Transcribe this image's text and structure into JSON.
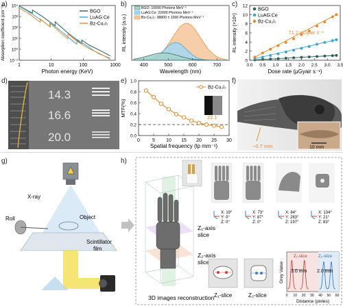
{
  "panel_labels": {
    "a": "a)",
    "b": "b)",
    "c": "c)",
    "d": "d)",
    "e": "e)",
    "f": "f)",
    "g": "g)",
    "h": "h)"
  },
  "colors": {
    "bgo": "#2f5f59",
    "luag": "#3aa6cf",
    "bz": "#e8892d",
    "lightgreen": "#a5d5cb",
    "lightblue": "#a9d7ef",
    "lightorange": "#f6c9a1",
    "beam": "#f3e05a"
  },
  "chart_data": [
    {
      "id": "a",
      "type": "line",
      "xlabel": "Photon energy (KeV)",
      "ylabel": "Absorption coefficient (cm⁻¹)",
      "xscale": "log",
      "yscale": "log",
      "xticks": [
        "1",
        "10",
        "100",
        "1000"
      ],
      "yticks": [
        "10⁻¹",
        "10⁰",
        "10¹",
        "10²",
        "10³",
        "10⁴"
      ],
      "legend": [
        "BGO",
        "LuAG:Ce",
        "Bz-Cu₂I₇"
      ],
      "legend_position": "top-right",
      "series": [
        {
          "name": "BGO",
          "x": [
            1,
            2,
            2.6,
            2.6,
            5,
            9,
            13.2,
            13.2,
            30,
            60,
            90,
            90.5,
            150,
            400,
            700
          ],
          "y": [
            9000,
            3000,
            2000,
            3800,
            1100,
            320,
            140,
            330,
            40,
            8,
            3,
            7,
            2.5,
            0.6,
            0.25
          ]
        },
        {
          "name": "LuAG:Ce",
          "x": [
            1,
            2,
            3,
            6,
            9,
            9.3,
            9.3,
            20,
            50,
            63,
            63.3,
            100,
            300,
            700
          ],
          "y": [
            8500,
            2600,
            1200,
            300,
            120,
            110,
            280,
            45,
            5,
            3,
            8,
            3.5,
            0.4,
            0.15
          ]
        },
        {
          "name": "Bz-Cu₂I₇",
          "x": [
            1,
            2,
            4.5,
            4.5,
            9,
            9,
            20,
            33,
            33.2,
            60,
            150,
            400,
            700
          ],
          "y": [
            6000,
            1800,
            300,
            600,
            120,
            250,
            30,
            9,
            25,
            6,
            1.2,
            0.3,
            0.12
          ]
        }
      ]
    },
    {
      "id": "b",
      "type": "area",
      "xlabel": "Wavelength (nm)",
      "ylabel": "RL intensity (a.u.)",
      "xlim": [
        350,
        750
      ],
      "xticks": [
        "400",
        "500",
        "600",
        "700"
      ],
      "legend": [
        "BGO: 10000 Photons MeV⁻¹",
        "LuAG:Ce: 22000 Photons MeV⁻¹",
        "Bz-Cu₂I₇: 38800 ± 1000 Photons MeV⁻¹"
      ],
      "series": [
        {
          "name": "BGO: 10000 Photons MeV⁻¹",
          "peak": 480,
          "width": 62,
          "height": 0.2
        },
        {
          "name": "LuAG:Ce: 22000 Photons MeV⁻¹",
          "peak": 530,
          "width": 45,
          "height": 0.48
        },
        {
          "name": "Bz-Cu₂I₇: 38800 ± 1000 Photons MeV⁻¹",
          "peak": 575,
          "width": 58,
          "height": 1.0
        }
      ]
    },
    {
      "id": "c",
      "type": "scatter",
      "xlabel": "Dose rate (μGyair s⁻¹)",
      "ylabel": "RL intensity (×10⁶)",
      "xlim": [
        0,
        3.5
      ],
      "ylim": [
        0,
        12
      ],
      "xticks": [
        "0.0",
        "0.5",
        "1.0",
        "1.5",
        "2.0",
        "2.5",
        "3.0",
        "3.5"
      ],
      "yticks": [
        "0",
        "2",
        "4",
        "6",
        "8",
        "10",
        "12"
      ],
      "legend": [
        "BGO",
        "LuAG:Ce",
        "Bz-Cu₂I₇"
      ],
      "legend_position": "top-left",
      "annotation": "71.2 nGyair s⁻¹",
      "x": [
        0.2,
        0.5,
        0.8,
        1.1,
        1.4,
        1.7,
        2.0,
        2.3,
        2.6,
        2.9,
        3.2,
        3.35
      ],
      "series": [
        {
          "name": "BGO",
          "values": [
            0.08,
            0.18,
            0.27,
            0.36,
            0.45,
            0.55,
            0.64,
            0.74,
            0.83,
            0.92,
            1.02,
            1.07
          ]
        },
        {
          "name": "LuAG:Ce",
          "values": [
            0.35,
            0.7,
            1.05,
            1.4,
            1.8,
            2.2,
            2.6,
            3.0,
            3.5,
            3.9,
            4.3,
            4.5
          ]
        },
        {
          "name": "Bz-Cu₂I₇",
          "values": [
            0.7,
            1.6,
            2.4,
            3.2,
            3.9,
            4.7,
            5.6,
            6.4,
            7.5,
            8.4,
            9.5,
            10.0
          ]
        }
      ]
    },
    {
      "id": "d",
      "type": "image",
      "labels": [
        "14.3",
        "16.6",
        "20.0"
      ]
    },
    {
      "id": "e",
      "type": "line",
      "xlabel": "Spatial frequency (lp mm⁻¹)",
      "ylabel": "MTF(%)",
      "xlim": [
        0,
        30
      ],
      "ylim": [
        0,
        1.0
      ],
      "xticks": [
        "0",
        "5",
        "10",
        "15",
        "20",
        "25",
        "30"
      ],
      "yticks": [
        "0.0",
        "0.2",
        "0.4",
        "0.6",
        "0.8",
        "1.0"
      ],
      "legend": [
        "Bz-Cu₂I₇"
      ],
      "annotation": "22.1",
      "threshold": 0.2,
      "x": [
        2.5,
        5,
        7.5,
        10,
        12.5,
        15,
        17.5,
        20,
        22.5,
        25,
        27.5
      ],
      "series": [
        {
          "name": "Bz-Cu₂I₇",
          "values": [
            0.82,
            0.7,
            0.58,
            0.48,
            0.39,
            0.33,
            0.27,
            0.23,
            0.2,
            0.18,
            0.16
          ]
        }
      ]
    },
    {
      "id": "f",
      "type": "image",
      "labels": [
        "~0.7 mm",
        "10 mm"
      ]
    },
    {
      "id": "g",
      "type": "diagram",
      "labels": [
        "X-ray",
        "Roll",
        "Object",
        "Scintillator film"
      ]
    },
    {
      "id": "h",
      "type": "diagram",
      "labels": [
        "Z₁-axis slice",
        "Z₂-axis slice",
        "3D images reconstruction",
        "Z₁-slice",
        "Z₂-slice"
      ],
      "views": [
        {
          "x": "X: 19°",
          "y": "Y: 0°",
          "z": "Z: 0°"
        },
        {
          "x": "X: 73°",
          "y": "Y: 87°",
          "z": "Z: 0°"
        },
        {
          "x": "X: 84°",
          "y": "Y: 283°",
          "z": "Z: 197°"
        },
        {
          "x": "X: 134°",
          "y": "Y: 21°",
          "z": "Z: 83°"
        }
      ],
      "profile": {
        "ylabel": "Grey Value",
        "xlabel": "Distance (pixles)",
        "xticks": [
          "0",
          "10",
          "20",
          "30",
          "40",
          "50",
          "60"
        ],
        "z1_label": "Z₁-slice",
        "z2_label": "Z₂-slice",
        "z1_width": "3.0 mm",
        "z2_width": "2.0 mm"
      }
    }
  ]
}
